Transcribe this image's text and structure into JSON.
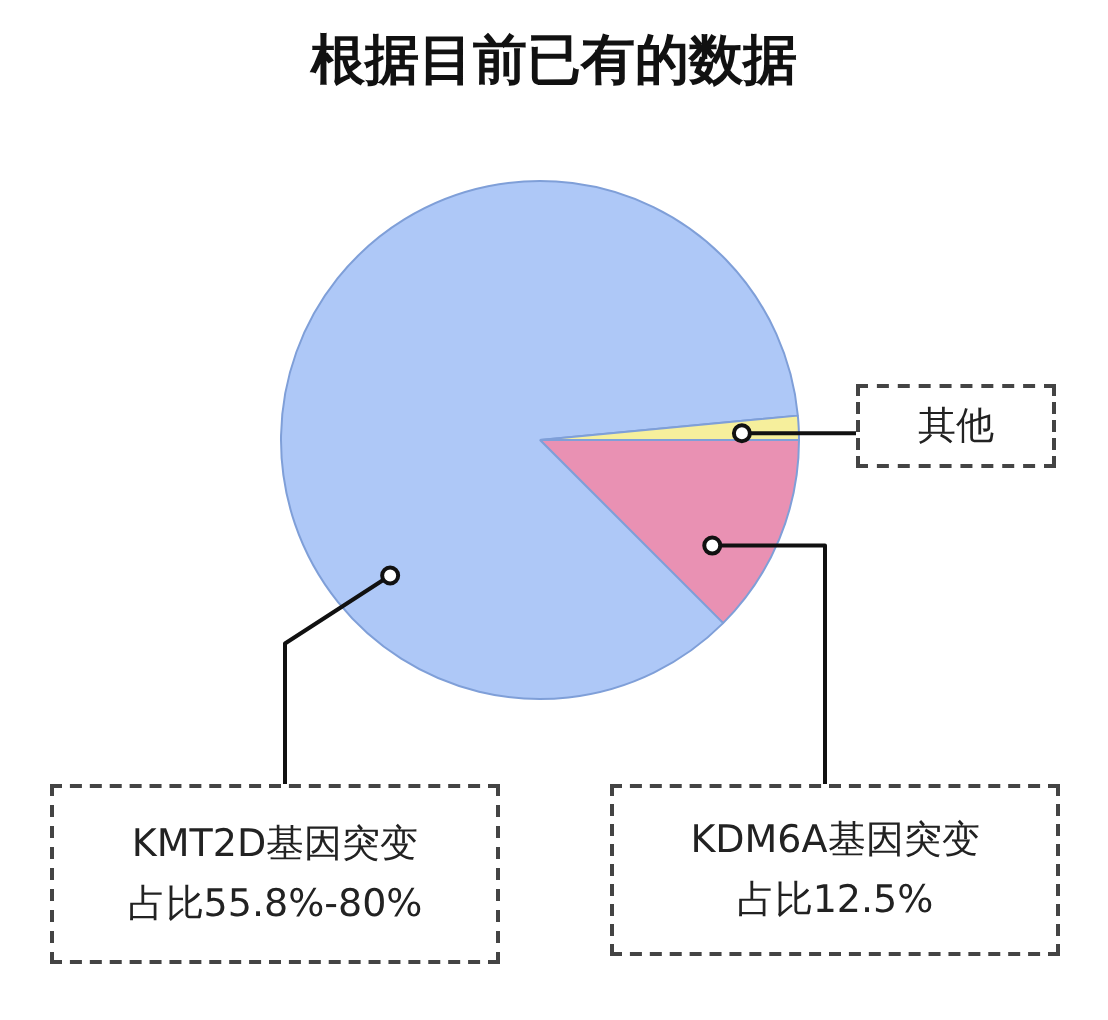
{
  "chart_data": {
    "type": "pie",
    "title": "根据目前已有的数据",
    "categories": [
      "KDM6A基因突变",
      "KMT2D基因突变",
      "其他"
    ],
    "values": [
      12.5,
      86,
      1.5
    ],
    "colors": [
      "#e991b3",
      "#aec8f7",
      "#f6ef9c"
    ],
    "value_labels": [
      "占比12.5%",
      null,
      null
    ],
    "annotations": [
      {
        "text": "占比55.8%-80%",
        "x": "KMT2D基因突变"
      }
    ]
  }
}
